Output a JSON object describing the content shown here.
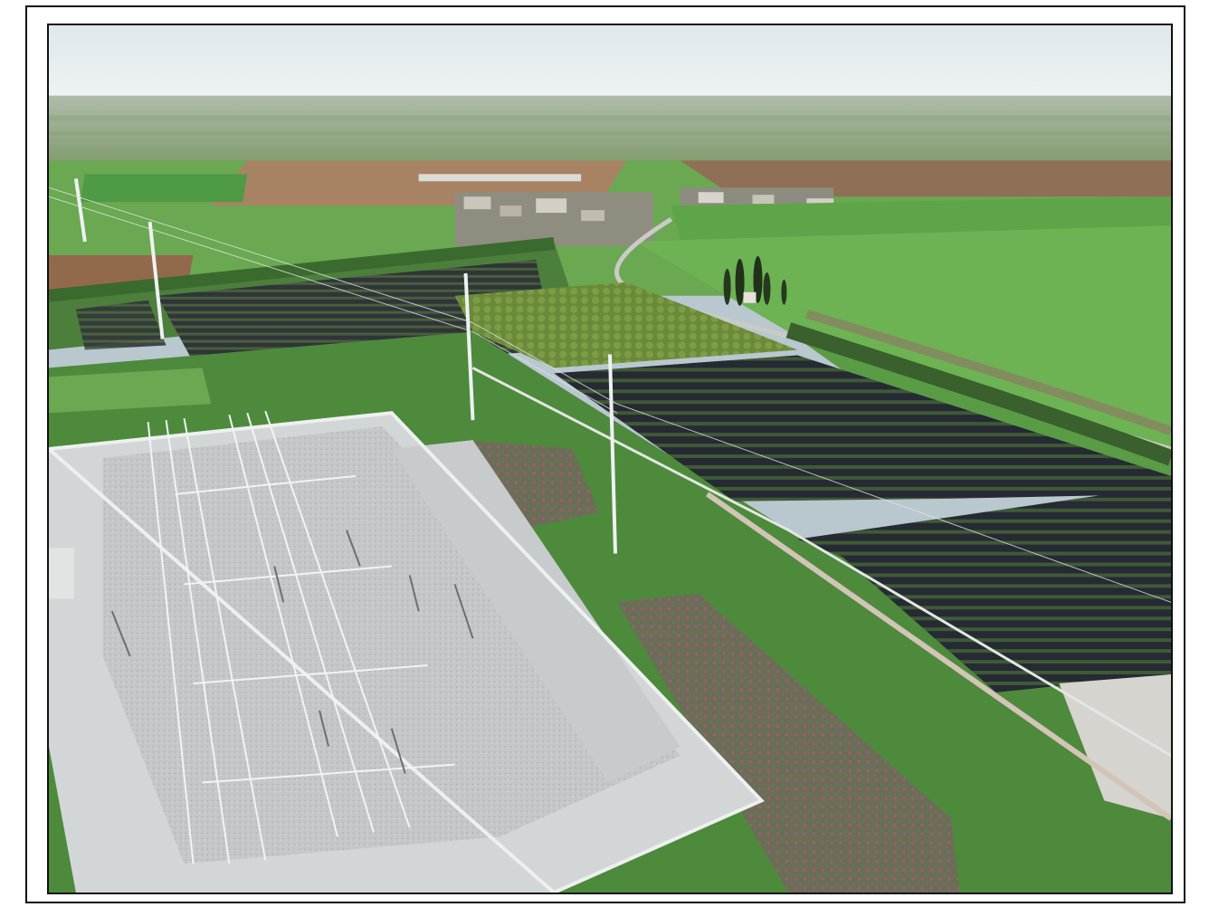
{
  "photo": {
    "subject": "aerial-photograph",
    "elements": [
      "sky",
      "distant-plain",
      "farm-fields",
      "village",
      "cypress-trees",
      "tree-rows",
      "orchard",
      "solar-panel-array",
      "electrical-substation",
      "transmission-pylons",
      "planted-embankment",
      "access-road"
    ]
  },
  "colors": {
    "sky_top": "#d8e4ea",
    "sky_horizon": "#eef3f4",
    "field_green": "#5fa24a",
    "field_bright": "#6fb853",
    "soil_brown": "#8f6a4e",
    "solar_panel": "#2a2f3a",
    "gravel": "#b8bcbf",
    "substation_pad": "#cfd2d3",
    "tree_dark": "#2f4a2a",
    "steel": "#e8ecee"
  }
}
